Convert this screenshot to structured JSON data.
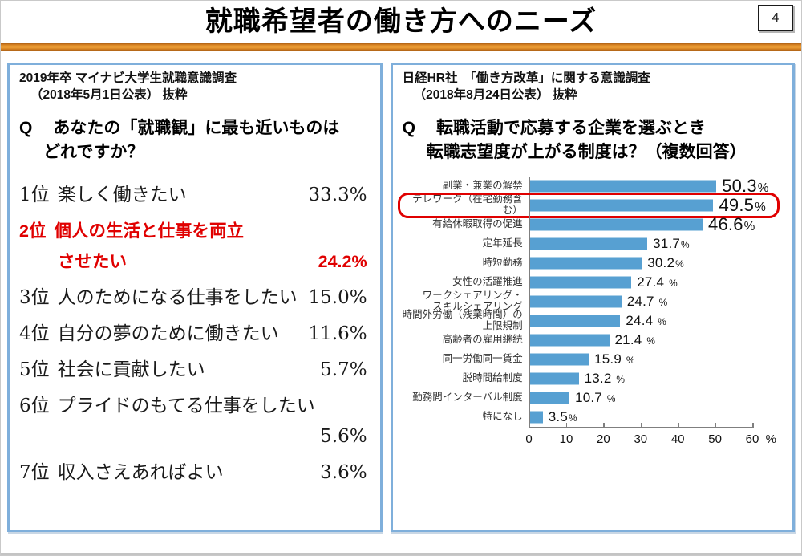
{
  "slide": {
    "title": "就職希望者の働き方へのニーズ",
    "page_number": "4"
  },
  "colors": {
    "accent_orange": "#e08a24",
    "panel_border_blue": "#7fafdb",
    "bar_blue": "#57a0d2",
    "highlight_red": "#e00000"
  },
  "left_panel": {
    "source_line1": "2019年卒 マイナビ大学生就職意識調査",
    "source_line2": "（2018年5月1日公表） 抜粋",
    "question_prefix": "Q",
    "question_line1": "あなたの「就職観」に最も近いものは",
    "question_line2": "どれですか？",
    "ranking": [
      {
        "rank": "1位",
        "lines": [
          "楽しく働きたい"
        ],
        "pct": "33.3%",
        "pct_line": 0,
        "red": false
      },
      {
        "rank": "2位",
        "lines": [
          "個人の生活と仕事を両立",
          "させたい"
        ],
        "pct": "24.2%",
        "pct_line": 1,
        "red": true
      },
      {
        "rank": "3位",
        "lines": [
          "人のためになる仕事をしたい"
        ],
        "pct": "15.0%",
        "pct_line": 0,
        "red": false
      },
      {
        "rank": "4位",
        "lines": [
          "自分の夢のために働きたい"
        ],
        "pct": "11.6%",
        "pct_line": 0,
        "red": false
      },
      {
        "rank": "5位",
        "lines": [
          "社会に貢献したい"
        ],
        "pct": "5.7%",
        "pct_line": 0,
        "red": false
      },
      {
        "rank": "6位",
        "lines": [
          "プライドのもてる仕事をしたい",
          ""
        ],
        "pct": "5.6%",
        "pct_line": 1,
        "red": false
      },
      {
        "rank": "7位",
        "lines": [
          "収入さえあればよい"
        ],
        "pct": "3.6%",
        "pct_line": 0,
        "red": false
      }
    ]
  },
  "right_panel": {
    "source_line1": "日経HR社　「働き方改革」に関する意識調査",
    "source_line2": "（2018年8月24日公表） 抜粋",
    "question_prefix": "Q",
    "question_line1": "転職活動で応募する企業を選ぶとき",
    "question_line2": "転職志望度が上がる制度は？（複数回答）"
  },
  "chart_data": {
    "type": "bar",
    "orientation": "horizontal",
    "title": "",
    "xlabel": "%",
    "ylabel": "",
    "categories": [
      "副業・兼業の解禁",
      "テレワーク（在宅勤務含む）",
      "有給休暇取得の促進",
      "定年延長",
      "時短勤務",
      "女性の活躍推進",
      "ワークシェアリング・\nスキルシェアリング",
      "時間外労働（残業時間）の\n上限規制",
      "高齢者の雇用継続",
      "同一労働同一賃金",
      "脱時間給制度",
      "勤務間インターバル制度",
      "特になし"
    ],
    "values": [
      50.3,
      49.5,
      46.6,
      31.7,
      30.2,
      27.4,
      24.7,
      24.4,
      21.4,
      15.9,
      13.2,
      10.7,
      3.5
    ],
    "value_labels": [
      "50.3%",
      "49.5%",
      "46.6%",
      "31.7%",
      "30.2%",
      "27.4 %",
      "24.7 %",
      "24.4 %",
      "21.4 %",
      "15.9 %",
      "13.2 %",
      "10.7 %",
      "3.5%"
    ],
    "large_label_count": 3,
    "highlight_index": 1,
    "xlim": [
      0,
      60
    ],
    "x_ticks": [
      0,
      10,
      20,
      30,
      40,
      50,
      60
    ],
    "x_unit": "%",
    "bar_color": "#57a0d2",
    "grid": false,
    "legend": false
  }
}
